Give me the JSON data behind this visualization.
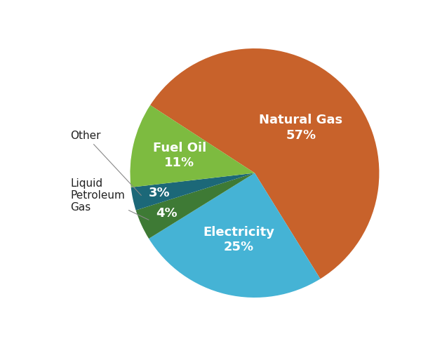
{
  "slices": [
    {
      "label": "Natural Gas",
      "pct": 57,
      "color": "#C8622B",
      "text_color": "#ffffff",
      "label_in_slice": "Natural Gas\n57%",
      "r": 0.52
    },
    {
      "label": "Electricity",
      "pct": 25,
      "color": "#45B3D5",
      "text_color": "#ffffff",
      "label_in_slice": "Electricity\n25%",
      "r": 0.55
    },
    {
      "label": "Liquid Petroleum Gas",
      "pct": 4,
      "color": "#3E7A35",
      "text_color": "#ffffff",
      "label_in_slice": "4%",
      "r": 0.78
    },
    {
      "label": "Other",
      "pct": 3,
      "color": "#1C6878",
      "text_color": "#ffffff",
      "label_in_slice": "3%",
      "r": 0.78
    },
    {
      "label": "Fuel Oil",
      "pct": 11,
      "color": "#7DBB40",
      "text_color": "#ffffff",
      "label_in_slice": "Fuel Oil\n11%",
      "r": 0.62
    }
  ],
  "external_labels": [
    {
      "label": "Other",
      "slice_index": 3,
      "xt": -1.48,
      "yt": 0.3
    },
    {
      "label": "Liquid\nPetroleum\nGas",
      "slice_index": 2,
      "xt": -1.48,
      "yt": -0.18
    }
  ],
  "figsize": [
    6.1,
    4.93
  ],
  "dpi": 100,
  "background_color": "#ffffff",
  "start_angle": 147,
  "label_fontsize": 13,
  "ext_label_fontsize": 11
}
